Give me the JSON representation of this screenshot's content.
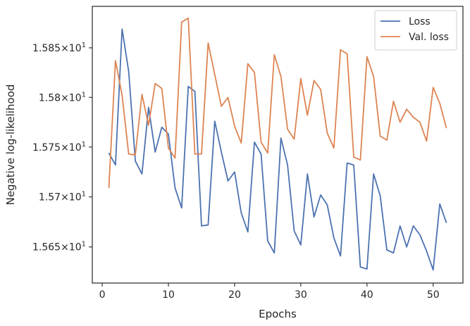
{
  "chart_data": {
    "type": "line",
    "title": "",
    "xlabel": "Epochs",
    "ylabel": "Negative log-likelihood",
    "y_scale": "log",
    "xlim": [
      -1.5,
      54.5
    ],
    "ylim": [
      15.614,
      15.892
    ],
    "grid": false,
    "legend_position": "top-right",
    "x_ticks": [
      {
        "value": 0,
        "label": "0"
      },
      {
        "value": 10,
        "label": "10"
      },
      {
        "value": 20,
        "label": "20"
      },
      {
        "value": 30,
        "label": "30"
      },
      {
        "value": 40,
        "label": "40"
      },
      {
        "value": 50,
        "label": "50"
      }
    ],
    "y_ticks": [
      {
        "value": 15.65,
        "mantissa": "1.565",
        "label": "1.565 × 10^1"
      },
      {
        "value": 15.7,
        "mantissa": "1.57",
        "label": "1.57 × 10^1"
      },
      {
        "value": 15.75,
        "mantissa": "1.575",
        "label": "1.575 × 10^1"
      },
      {
        "value": 15.8,
        "mantissa": "1.58",
        "label": "1.58 × 10^1"
      },
      {
        "value": 15.85,
        "mantissa": "1.585",
        "label": "1.585 × 10^1"
      }
    ],
    "y_tick_exponent_base": "10",
    "y_tick_exponent": "1",
    "x": [
      1,
      2,
      3,
      4,
      5,
      6,
      7,
      8,
      9,
      10,
      11,
      12,
      13,
      14,
      15,
      16,
      17,
      18,
      19,
      20,
      21,
      22,
      23,
      24,
      25,
      26,
      27,
      28,
      29,
      30,
      31,
      32,
      33,
      34,
      35,
      36,
      37,
      38,
      39,
      40,
      41,
      42,
      43,
      44,
      45,
      46,
      47,
      48,
      49,
      50,
      51,
      52
    ],
    "series": [
      {
        "name": "Loss",
        "color": "#4c72b0",
        "values": [
          15.744,
          15.732,
          15.869,
          15.826,
          15.736,
          15.723,
          15.79,
          15.745,
          15.77,
          15.763,
          15.709,
          15.689,
          15.811,
          15.806,
          15.671,
          15.672,
          15.776,
          15.745,
          15.716,
          15.725,
          15.684,
          15.665,
          15.755,
          15.743,
          15.656,
          15.644,
          15.759,
          15.732,
          15.666,
          15.652,
          15.723,
          15.68,
          15.702,
          15.692,
          15.659,
          15.641,
          15.734,
          15.732,
          15.63,
          15.628,
          15.723,
          15.701,
          15.647,
          15.644,
          15.671,
          15.65,
          15.671,
          15.662,
          15.646,
          15.627,
          15.693,
          15.674
        ]
      },
      {
        "name": "Val. loss",
        "color": "#dd8452",
        "values": [
          15.709,
          15.837,
          15.802,
          15.743,
          15.742,
          15.803,
          15.772,
          15.814,
          15.809,
          15.749,
          15.739,
          15.876,
          15.88,
          15.743,
          15.743,
          15.855,
          15.823,
          15.791,
          15.8,
          15.771,
          15.754,
          15.834,
          15.825,
          15.755,
          15.744,
          15.843,
          15.821,
          15.768,
          15.758,
          15.819,
          15.782,
          15.817,
          15.808,
          15.764,
          15.749,
          15.848,
          15.844,
          15.74,
          15.737,
          15.841,
          15.821,
          15.761,
          15.757,
          15.796,
          15.775,
          15.788,
          15.78,
          15.775,
          15.756,
          15.81,
          15.794,
          15.769
        ]
      }
    ]
  }
}
